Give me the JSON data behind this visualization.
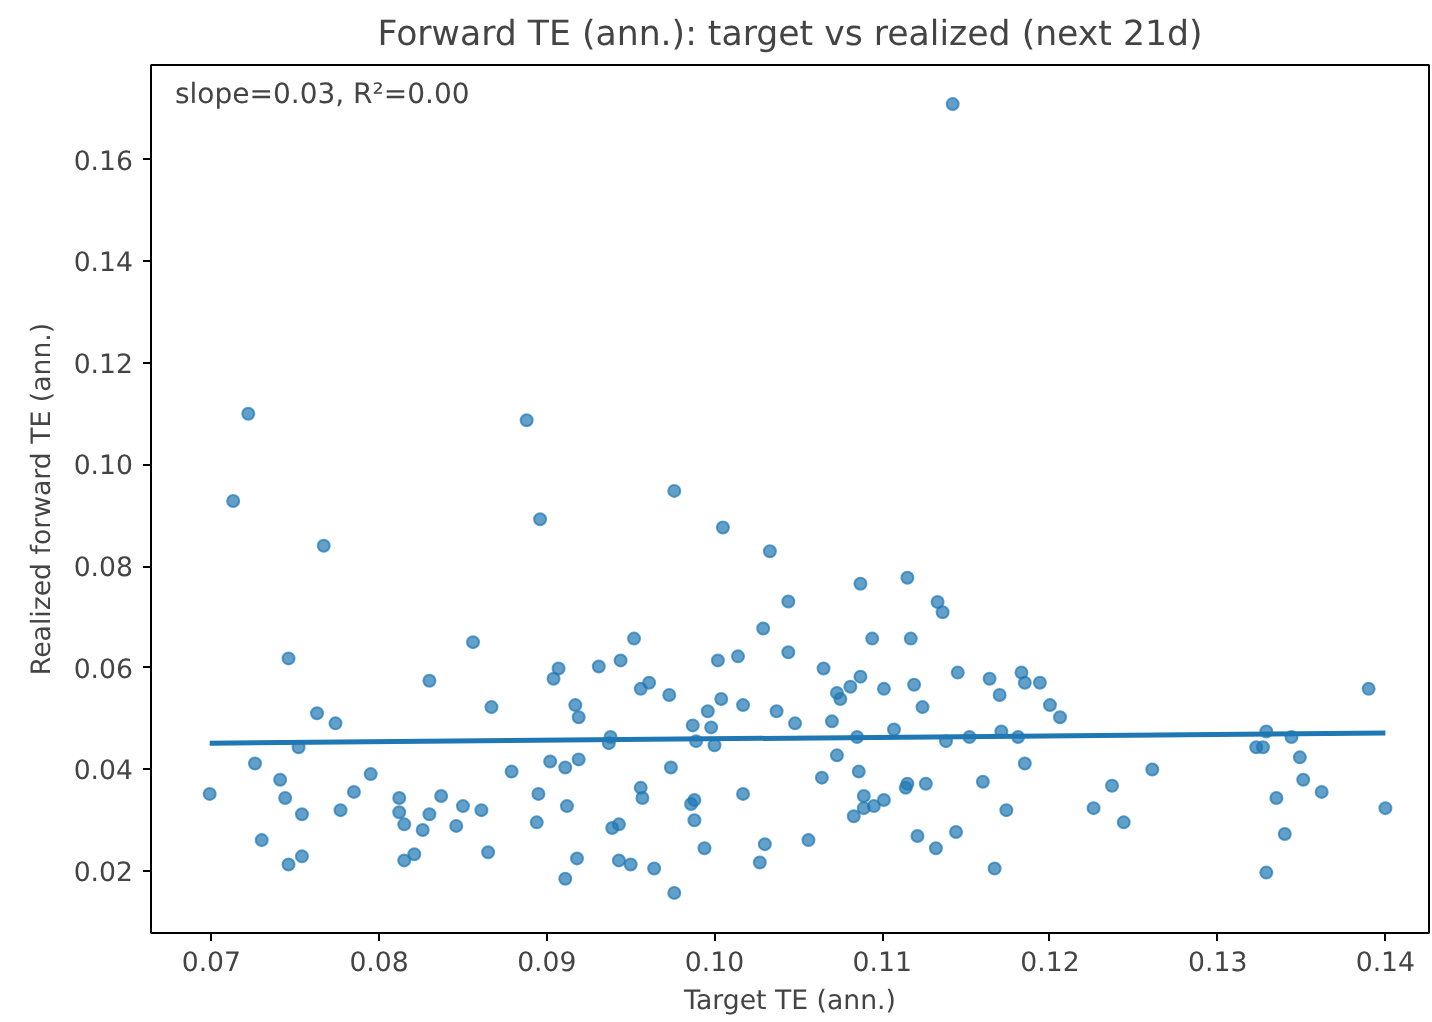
{
  "chart_data": {
    "type": "scatter",
    "title": "Forward TE (ann.): target vs realized (next 21d)",
    "xlabel": "Target TE (ann.)",
    "ylabel": "Realized forward TE (ann.)",
    "annotations": [
      "slope=0.03, R²=0.00"
    ],
    "xlim": [
      0.0664,
      0.1426
    ],
    "ylim": [
      0.0077,
      0.1787
    ],
    "xticks": [
      0.07,
      0.08,
      0.09,
      {
        "value": 0.1,
        "label": "0.10"
      },
      0.11,
      0.12,
      0.13,
      0.14
    ],
    "yticks": [
      0.02,
      0.04,
      0.06,
      0.08,
      {
        "value": 0.1,
        "label": "0.10"
      },
      0.12,
      0.14,
      0.16
    ],
    "grid": false,
    "series": [
      {
        "marker": "circle",
        "color": "#1f77b4",
        "x": [
          0.0699,
          0.0713,
          0.0722,
          0.0726,
          0.073,
          0.0741,
          0.0744,
          0.0746,
          0.0746,
          0.0752,
          0.0754,
          0.0754,
          0.0763,
          0.0767,
          0.0774,
          0.0777,
          0.0785,
          0.0795,
          0.0812,
          0.0812,
          0.0815,
          0.0815,
          0.0821,
          0.0826,
          0.083,
          0.083,
          0.0837,
          0.0846,
          0.085,
          0.0856,
          0.0861,
          0.0865,
          0.0867,
          0.0879,
          0.0888,
          0.0894,
          0.0896,
          0.0895,
          0.0902,
          0.0904,
          0.0907,
          0.0911,
          0.0912,
          0.0911,
          0.0917,
          0.0918,
          0.0919,
          0.0919,
          0.0931,
          0.0937,
          0.0938,
          0.0939,
          0.0943,
          0.0944,
          0.0943,
          0.095,
          0.0952,
          0.0956,
          0.0956,
          0.0957,
          0.0961,
          0.0964,
          0.0973,
          0.0974,
          0.0976,
          0.0976,
          0.0986,
          0.0987,
          0.0988,
          0.0988,
          0.0989,
          0.0994,
          0.0996,
          0.0998,
          0.1,
          0.1002,
          0.1005,
          0.1004,
          0.1014,
          0.1017,
          0.1017,
          0.1027,
          0.1029,
          0.103,
          0.1033,
          0.1037,
          0.1044,
          0.1044,
          0.1048,
          0.1056,
          0.1065,
          0.1064,
          0.107,
          0.1073,
          0.1073,
          0.1075,
          0.1081,
          0.1083,
          0.1085,
          0.1086,
          0.1087,
          0.1087,
          0.1089,
          0.1089,
          0.1094,
          0.1095,
          0.1101,
          0.1101,
          0.1107,
          0.1114,
          0.1115,
          0.1115,
          0.1117,
          0.1119,
          0.1121,
          0.1124,
          0.1126,
          0.1132,
          0.1133,
          0.1136,
          0.1138,
          0.1142,
          0.1144,
          0.1145,
          0.1152,
          0.116,
          0.1164,
          0.1167,
          0.117,
          0.1171,
          0.1174,
          0.1181,
          0.1183,
          0.1185,
          0.1185,
          0.1194,
          0.12,
          0.1206,
          0.1226,
          0.1237,
          0.1244,
          0.1261,
          0.1323,
          0.1327,
          0.1329,
          0.1329,
          0.1335,
          0.134,
          0.1344,
          0.1349,
          0.1351,
          0.1362,
          0.139,
          0.14
        ],
        "values": [
          0.0351,
          0.0928,
          0.11,
          0.0411,
          0.026,
          0.0379,
          0.0343,
          0.0618,
          0.0212,
          0.0443,
          0.0311,
          0.0228,
          0.051,
          0.084,
          0.049,
          0.0319,
          0.0355,
          0.039,
          0.0343,
          0.0315,
          0.0291,
          0.022,
          0.0232,
          0.028,
          0.0311,
          0.0574,
          0.0347,
          0.0288,
          0.0327,
          0.065,
          0.0319,
          0.0236,
          0.0522,
          0.0395,
          0.1087,
          0.0295,
          0.0892,
          0.0351,
          0.0415,
          0.0578,
          0.0598,
          0.0403,
          0.0327,
          0.0184,
          0.0526,
          0.0224,
          0.0502,
          0.0419,
          0.0602,
          0.0451,
          0.0463,
          0.0284,
          0.0291,
          0.0614,
          0.022,
          0.0212,
          0.0657,
          0.0558,
          0.0363,
          0.0343,
          0.057,
          0.0204,
          0.0546,
          0.0403,
          0.0948,
          0.0156,
          0.0331,
          0.0486,
          0.0339,
          0.0299,
          0.0455,
          0.0244,
          0.0514,
          0.0482,
          0.0447,
          0.0614,
          0.0876,
          0.0538,
          0.0622,
          0.0526,
          0.0351,
          0.0216,
          0.0677,
          0.0252,
          0.0829,
          0.0514,
          0.063,
          0.073,
          0.049,
          0.026,
          0.0598,
          0.0383,
          0.0494,
          0.0427,
          0.055,
          0.0538,
          0.0562,
          0.0307,
          0.0463,
          0.0395,
          0.0765,
          0.0582,
          0.0323,
          0.0347,
          0.0657,
          0.0327,
          0.0339,
          0.0558,
          0.0478,
          0.0363,
          0.0371,
          0.0777,
          0.0657,
          0.0566,
          0.0268,
          0.0522,
          0.0371,
          0.0244,
          0.0729,
          0.0709,
          0.0455,
          0.171,
          0.0276,
          0.059,
          0.0463,
          0.0375,
          0.0578,
          0.0204,
          0.0546,
          0.0474,
          0.0319,
          0.0463,
          0.059,
          0.057,
          0.0411,
          0.057,
          0.0526,
          0.0502,
          0.0323,
          0.0367,
          0.0295,
          0.0399,
          0.0443,
          0.0443,
          0.0474,
          0.0196,
          0.0343,
          0.0272,
          0.0463,
          0.0423,
          0.0379,
          0.0355,
          0.0558,
          0.0323
        ]
      },
      {
        "type": "line",
        "marker": "none",
        "color": "#1f77b4",
        "x": [
          0.0699,
          0.14
        ],
        "values": [
          0.0451,
          0.0471
        ]
      }
    ]
  }
}
